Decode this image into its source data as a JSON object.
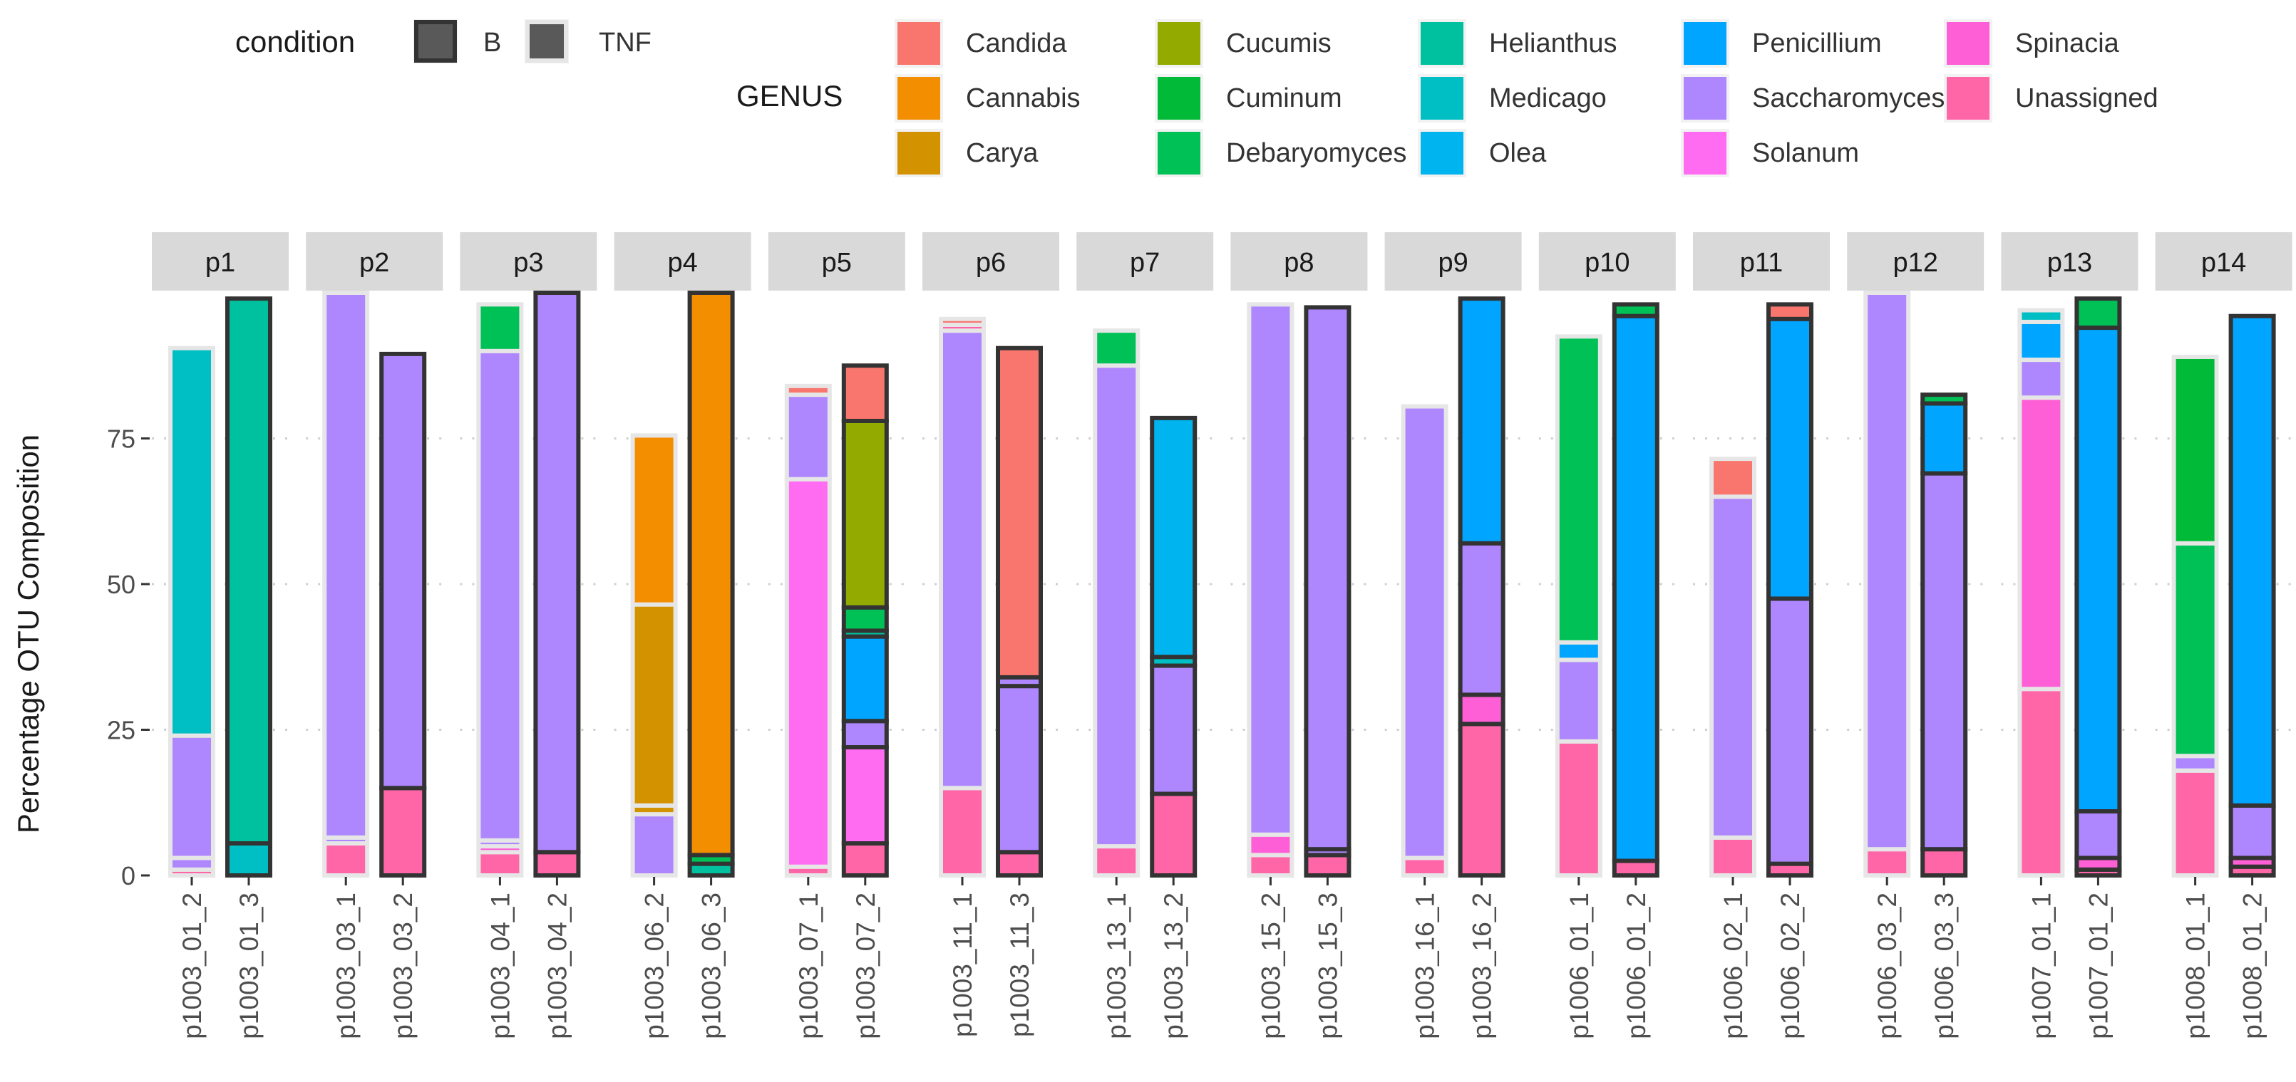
{
  "chart_data": {
    "type": "bar",
    "stacked": true,
    "faceted": true,
    "ylabel": "Percentage OTU Composition",
    "xlabel": "",
    "ylim": [
      0,
      100
    ],
    "yticks": [
      0,
      25,
      50,
      75
    ],
    "grid": true,
    "legend_position": "top",
    "legend_condition": {
      "title": "condition",
      "entries": [
        {
          "label": "B",
          "border": "#333333"
        },
        {
          "label": "TNF",
          "border": "#e6e6e6"
        }
      ],
      "fill": "#595959"
    },
    "legend_genus": {
      "title": "GENUS",
      "entries": [
        {
          "label": "Candida",
          "color": "#F8766D"
        },
        {
          "label": "Cannabis",
          "color": "#F28E00"
        },
        {
          "label": "Carya",
          "color": "#D39200"
        },
        {
          "label": "Cucumis",
          "color": "#93AA00"
        },
        {
          "label": "Cuminum",
          "color": "#00BA38"
        },
        {
          "label": "Debaryomyces",
          "color": "#00C156"
        },
        {
          "label": "Helianthus",
          "color": "#00C19F"
        },
        {
          "label": "Medicago",
          "color": "#00BFC4"
        },
        {
          "label": "Olea",
          "color": "#00B4EF"
        },
        {
          "label": "Penicillium",
          "color": "#00A5FF"
        },
        {
          "label": "Saccharomyces",
          "color": "#AE87FF"
        },
        {
          "label": "Solanum",
          "color": "#FF6CF1"
        },
        {
          "label": "Spinacia",
          "color": "#FF5FD6"
        },
        {
          "label": "Unassigned",
          "color": "#FF66A8"
        }
      ]
    },
    "panels": [
      {
        "label": "p1",
        "bars": [
          {
            "sample": "p1003_01_2",
            "condition": "TNF",
            "segments": [
              {
                "genus": "Unassigned",
                "value": 1
              },
              {
                "genus": "Saccharomyces",
                "value": 2
              },
              {
                "genus": "Saccharomyces",
                "value": 21
              },
              {
                "genus": "Medicago",
                "value": 66.5
              }
            ]
          },
          {
            "sample": "p1003_01_3",
            "condition": "B",
            "segments": [
              {
                "genus": "Medicago",
                "value": 5.5
              },
              {
                "genus": "Helianthus",
                "value": 93.5
              }
            ]
          }
        ]
      },
      {
        "label": "p2",
        "bars": [
          {
            "sample": "p1003_03_1",
            "condition": "TNF",
            "segments": [
              {
                "genus": "Unassigned",
                "value": 5.5
              },
              {
                "genus": "Saccharomyces",
                "value": 1
              },
              {
                "genus": "Saccharomyces",
                "value": 93.5
              }
            ]
          },
          {
            "sample": "p1003_03_2",
            "condition": "B",
            "segments": [
              {
                "genus": "Unassigned",
                "value": 15
              },
              {
                "genus": "Saccharomyces",
                "value": 74.5
              }
            ]
          }
        ]
      },
      {
        "label": "p3",
        "bars": [
          {
            "sample": "p1003_04_1",
            "condition": "TNF",
            "segments": [
              {
                "genus": "Unassigned",
                "value": 4
              },
              {
                "genus": "Spinacia",
                "value": 1
              },
              {
                "genus": "Saccharomyces",
                "value": 1
              },
              {
                "genus": "Saccharomyces",
                "value": 84
              },
              {
                "genus": "Debaryomyces",
                "value": 8
              }
            ]
          },
          {
            "sample": "p1003_04_2",
            "condition": "B",
            "segments": [
              {
                "genus": "Unassigned",
                "value": 4
              },
              {
                "genus": "Saccharomyces",
                "value": 96
              }
            ]
          }
        ]
      },
      {
        "label": "p4",
        "bars": [
          {
            "sample": "p1003_06_2",
            "condition": "TNF",
            "segments": [
              {
                "genus": "Saccharomyces",
                "value": 10.5
              },
              {
                "genus": "Carya",
                "value": 1.5
              },
              {
                "genus": "Carya",
                "value": 34.5
              },
              {
                "genus": "Cannabis",
                "value": 29
              }
            ]
          },
          {
            "sample": "p1003_06_3",
            "condition": "B",
            "segments": [
              {
                "genus": "Helianthus",
                "value": 2
              },
              {
                "genus": "Debaryomyces",
                "value": 1.5
              },
              {
                "genus": "Cannabis",
                "value": 96.5
              }
            ]
          }
        ]
      },
      {
        "label": "p5",
        "bars": [
          {
            "sample": "p1003_07_1",
            "condition": "TNF",
            "segments": [
              {
                "genus": "Unassigned",
                "value": 1.5
              },
              {
                "genus": "Solanum",
                "value": 66.5
              },
              {
                "genus": "Saccharomyces",
                "value": 14.5
              },
              {
                "genus": "Candida",
                "value": 1.5
              }
            ]
          },
          {
            "sample": "p1003_07_2",
            "condition": "B",
            "segments": [
              {
                "genus": "Unassigned",
                "value": 5.5
              },
              {
                "genus": "Solanum",
                "value": 16.5
              },
              {
                "genus": "Saccharomyces",
                "value": 4.5
              },
              {
                "genus": "Penicillium",
                "value": 14.5
              },
              {
                "genus": "Helianthus",
                "value": 1
              },
              {
                "genus": "Debaryomyces",
                "value": 4
              },
              {
                "genus": "Cucumis",
                "value": 32
              },
              {
                "genus": "Candida",
                "value": 9.5
              }
            ]
          }
        ]
      },
      {
        "label": "p6",
        "bars": [
          {
            "sample": "p1003_11_1",
            "condition": "TNF",
            "segments": [
              {
                "genus": "Unassigned",
                "value": 15
              },
              {
                "genus": "Saccharomyces",
                "value": 78.5
              },
              {
                "genus": "Unassigned",
                "value": 1
              },
              {
                "genus": "Candida",
                "value": 1
              }
            ]
          },
          {
            "sample": "p1003_11_3",
            "condition": "B",
            "segments": [
              {
                "genus": "Unassigned",
                "value": 4
              },
              {
                "genus": "Saccharomyces",
                "value": 28.5
              },
              {
                "genus": "Saccharomyces",
                "value": 1.5
              },
              {
                "genus": "Candida",
                "value": 56.5
              }
            ]
          }
        ]
      },
      {
        "label": "p7",
        "bars": [
          {
            "sample": "p1003_13_1",
            "condition": "TNF",
            "segments": [
              {
                "genus": "Unassigned",
                "value": 5
              },
              {
                "genus": "Saccharomyces",
                "value": 82.5
              },
              {
                "genus": "Debaryomyces",
                "value": 6
              }
            ]
          },
          {
            "sample": "p1003_13_2",
            "condition": "B",
            "segments": [
              {
                "genus": "Unassigned",
                "value": 14
              },
              {
                "genus": "Saccharomyces",
                "value": 22
              },
              {
                "genus": "Medicago",
                "value": 1.5
              },
              {
                "genus": "Olea",
                "value": 41
              }
            ]
          }
        ]
      },
      {
        "label": "p8",
        "bars": [
          {
            "sample": "p1003_15_2",
            "condition": "TNF",
            "segments": [
              {
                "genus": "Unassigned",
                "value": 3.5
              },
              {
                "genus": "Spinacia",
                "value": 3.5
              },
              {
                "genus": "Saccharomyces",
                "value": 91
              }
            ]
          },
          {
            "sample": "p1003_15_3",
            "condition": "B",
            "segments": [
              {
                "genus": "Unassigned",
                "value": 3.5
              },
              {
                "genus": "Saccharomyces",
                "value": 1
              },
              {
                "genus": "Saccharomyces",
                "value": 93
              }
            ]
          }
        ]
      },
      {
        "label": "p9",
        "bars": [
          {
            "sample": "p1003_16_1",
            "condition": "TNF",
            "segments": [
              {
                "genus": "Unassigned",
                "value": 3
              },
              {
                "genus": "Saccharomyces",
                "value": 77.5
              }
            ]
          },
          {
            "sample": "p1003_16_2",
            "condition": "B",
            "segments": [
              {
                "genus": "Unassigned",
                "value": 26
              },
              {
                "genus": "Spinacia",
                "value": 5
              },
              {
                "genus": "Saccharomyces",
                "value": 26
              },
              {
                "genus": "Penicillium",
                "value": 42
              }
            ]
          }
        ]
      },
      {
        "label": "p10",
        "bars": [
          {
            "sample": "p1006_01_1",
            "condition": "TNF",
            "segments": [
              {
                "genus": "Unassigned",
                "value": 23
              },
              {
                "genus": "Saccharomyces",
                "value": 14
              },
              {
                "genus": "Penicillium",
                "value": 3
              },
              {
                "genus": "Debaryomyces",
                "value": 52.5
              }
            ]
          },
          {
            "sample": "p1006_01_2",
            "condition": "B",
            "segments": [
              {
                "genus": "Unassigned",
                "value": 2.5
              },
              {
                "genus": "Penicillium",
                "value": 93.5
              },
              {
                "genus": "Debaryomyces",
                "value": 2
              }
            ]
          }
        ]
      },
      {
        "label": "p11",
        "bars": [
          {
            "sample": "p1006_02_1",
            "condition": "TNF",
            "segments": [
              {
                "genus": "Unassigned",
                "value": 6.5
              },
              {
                "genus": "Saccharomyces",
                "value": 58.5
              },
              {
                "genus": "Candida",
                "value": 6.5
              }
            ]
          },
          {
            "sample": "p1006_02_2",
            "condition": "B",
            "segments": [
              {
                "genus": "Unassigned",
                "value": 2
              },
              {
                "genus": "Saccharomyces",
                "value": 45.5
              },
              {
                "genus": "Penicillium",
                "value": 48
              },
              {
                "genus": "Candida",
                "value": 2.5
              }
            ]
          }
        ]
      },
      {
        "label": "p12",
        "bars": [
          {
            "sample": "p1006_03_2",
            "condition": "TNF",
            "segments": [
              {
                "genus": "Unassigned",
                "value": 4.5
              },
              {
                "genus": "Saccharomyces",
                "value": 95.5
              }
            ]
          },
          {
            "sample": "p1006_03_3",
            "condition": "B",
            "segments": [
              {
                "genus": "Unassigned",
                "value": 4.5
              },
              {
                "genus": "Saccharomyces",
                "value": 64.5
              },
              {
                "genus": "Penicillium",
                "value": 12
              },
              {
                "genus": "Debaryomyces",
                "value": 1.5
              }
            ]
          }
        ]
      },
      {
        "label": "p13",
        "bars": [
          {
            "sample": "p1007_01_1",
            "condition": "TNF",
            "segments": [
              {
                "genus": "Unassigned",
                "value": 32
              },
              {
                "genus": "Spinacia",
                "value": 50
              },
              {
                "genus": "Saccharomyces",
                "value": 6.5
              },
              {
                "genus": "Penicillium",
                "value": 6.5
              },
              {
                "genus": "Medicago",
                "value": 2
              }
            ]
          },
          {
            "sample": "p1007_01_2",
            "condition": "B",
            "segments": [
              {
                "genus": "Unassigned",
                "value": 1
              },
              {
                "genus": "Spinacia",
                "value": 2
              },
              {
                "genus": "Saccharomyces",
                "value": 8
              },
              {
                "genus": "Penicillium",
                "value": 83
              },
              {
                "genus": "Debaryomyces",
                "value": 5
              }
            ]
          }
        ]
      },
      {
        "label": "p14",
        "bars": [
          {
            "sample": "p1008_01_1",
            "condition": "TNF",
            "segments": [
              {
                "genus": "Unassigned",
                "value": 18
              },
              {
                "genus": "Saccharomyces",
                "value": 2.5
              },
              {
                "genus": "Debaryomyces",
                "value": 36.5
              },
              {
                "genus": "Cuminum",
                "value": 32
              }
            ]
          },
          {
            "sample": "p1008_01_2",
            "condition": "B",
            "segments": [
              {
                "genus": "Unassigned",
                "value": 1.5
              },
              {
                "genus": "Spinacia",
                "value": 1.5
              },
              {
                "genus": "Saccharomyces",
                "value": 9
              },
              {
                "genus": "Penicillium",
                "value": 84
              }
            ]
          }
        ]
      }
    ]
  }
}
